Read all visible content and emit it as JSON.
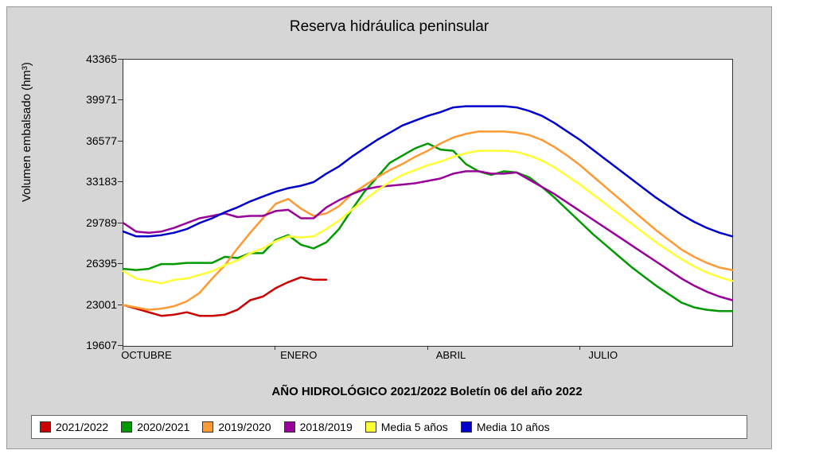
{
  "chart": {
    "type": "line",
    "title": "Reserva hidráulica peninsular",
    "ylabel": "Volumen embalsado (hm³)",
    "xlabel": "AÑO HIDROLÓGICO 2021/2022 Boletín 06 del año 2022",
    "background_color": "#d6d6d6",
    "plot_background": "#ffffff",
    "border_color": "#333333",
    "title_fontsize": 19,
    "label_fontsize": 15,
    "tick_fontsize": 14,
    "line_width": 2.5,
    "ylim": [
      19607,
      43365
    ],
    "yticks": [
      19607,
      23001,
      26395,
      29789,
      33183,
      36577,
      39971,
      43365
    ],
    "xtick_labels": [
      "OCTUBRE",
      "ENERO",
      "ABRIL",
      "JULIO"
    ],
    "xtick_months": [
      0,
      3,
      6,
      9
    ],
    "x_months_total": 12,
    "series": [
      {
        "name": "2021/2022",
        "color": "#cc0000",
        "values": [
          23000,
          22700,
          22400,
          22100,
          22200,
          22400,
          22100,
          22100,
          22200,
          22600,
          23400,
          23700,
          24400,
          24900,
          25300,
          25100,
          25100
        ]
      },
      {
        "name": "2020/2021",
        "color": "#009900",
        "values": [
          26000,
          25900,
          26000,
          26400,
          26400,
          26500,
          26500,
          26500,
          27000,
          26900,
          27300,
          27300,
          28400,
          28800,
          28000,
          27700,
          28200,
          29300,
          30900,
          32400,
          33600,
          34800,
          35400,
          36000,
          36400,
          35900,
          35800,
          34700,
          34100,
          33800,
          34100,
          34000,
          33600,
          32800,
          31900,
          30900,
          29900,
          28900,
          28000,
          27100,
          26200,
          25400,
          24600,
          23900,
          23200,
          22800,
          22600,
          22500,
          22500
        ]
      },
      {
        "name": "2019/2020",
        "color": "#ff9933",
        "values": [
          23000,
          22800,
          22600,
          22700,
          22900,
          23300,
          24000,
          25200,
          26300,
          27700,
          29000,
          30200,
          31400,
          31800,
          31000,
          30400,
          30600,
          31200,
          32200,
          32900,
          33600,
          34200,
          34700,
          35300,
          35800,
          36400,
          36900,
          37200,
          37400,
          37400,
          37400,
          37300,
          37100,
          36700,
          36100,
          35400,
          34600,
          33700,
          32800,
          31900,
          31000,
          30100,
          29200,
          28400,
          27600,
          27000,
          26500,
          26100,
          25900
        ]
      },
      {
        "name": "2018/2019",
        "color": "#990099",
        "values": [
          29800,
          29100,
          29000,
          29100,
          29400,
          29800,
          30200,
          30400,
          30600,
          30300,
          30400,
          30400,
          30800,
          30900,
          30200,
          30200,
          31100,
          31700,
          32200,
          32600,
          32800,
          32900,
          33000,
          33100,
          33300,
          33500,
          33900,
          34100,
          34100,
          33900,
          33900,
          34000,
          33400,
          32800,
          32200,
          31500,
          30800,
          30100,
          29400,
          28700,
          28000,
          27300,
          26600,
          25900,
          25200,
          24600,
          24100,
          23700,
          23400
        ]
      },
      {
        "name": "Media 5 años",
        "color": "#ffff33",
        "values": [
          25800,
          25200,
          25000,
          24800,
          25100,
          25200,
          25500,
          25800,
          26300,
          26700,
          27300,
          27700,
          28300,
          28700,
          28600,
          28700,
          29300,
          30000,
          30900,
          31700,
          32500,
          33200,
          33800,
          34200,
          34600,
          34900,
          35300,
          35600,
          35800,
          35800,
          35800,
          35700,
          35400,
          35000,
          34400,
          33700,
          33000,
          32200,
          31400,
          30600,
          29800,
          29000,
          28200,
          27500,
          26800,
          26200,
          25700,
          25300,
          25000
        ]
      },
      {
        "name": "Media 10 años",
        "color": "#0000cc",
        "values": [
          29100,
          28700,
          28700,
          28800,
          29000,
          29300,
          29800,
          30200,
          30700,
          31100,
          31600,
          32000,
          32400,
          32700,
          32900,
          33200,
          33900,
          34500,
          35300,
          36000,
          36700,
          37300,
          37900,
          38300,
          38700,
          39000,
          39400,
          39500,
          39500,
          39500,
          39500,
          39400,
          39100,
          38700,
          38100,
          37400,
          36700,
          35900,
          35100,
          34300,
          33500,
          32700,
          31900,
          31200,
          30500,
          29900,
          29400,
          29000,
          28700
        ]
      }
    ]
  },
  "legend_items": [
    {
      "label": "2021/2022",
      "color": "#cc0000"
    },
    {
      "label": "2020/2021",
      "color": "#009900"
    },
    {
      "label": "2019/2020",
      "color": "#ff9933"
    },
    {
      "label": "2018/2019",
      "color": "#990099"
    },
    {
      "label": "Media 5 años",
      "color": "#ffff33"
    },
    {
      "label": "Media 10 años",
      "color": "#0000cc"
    }
  ]
}
